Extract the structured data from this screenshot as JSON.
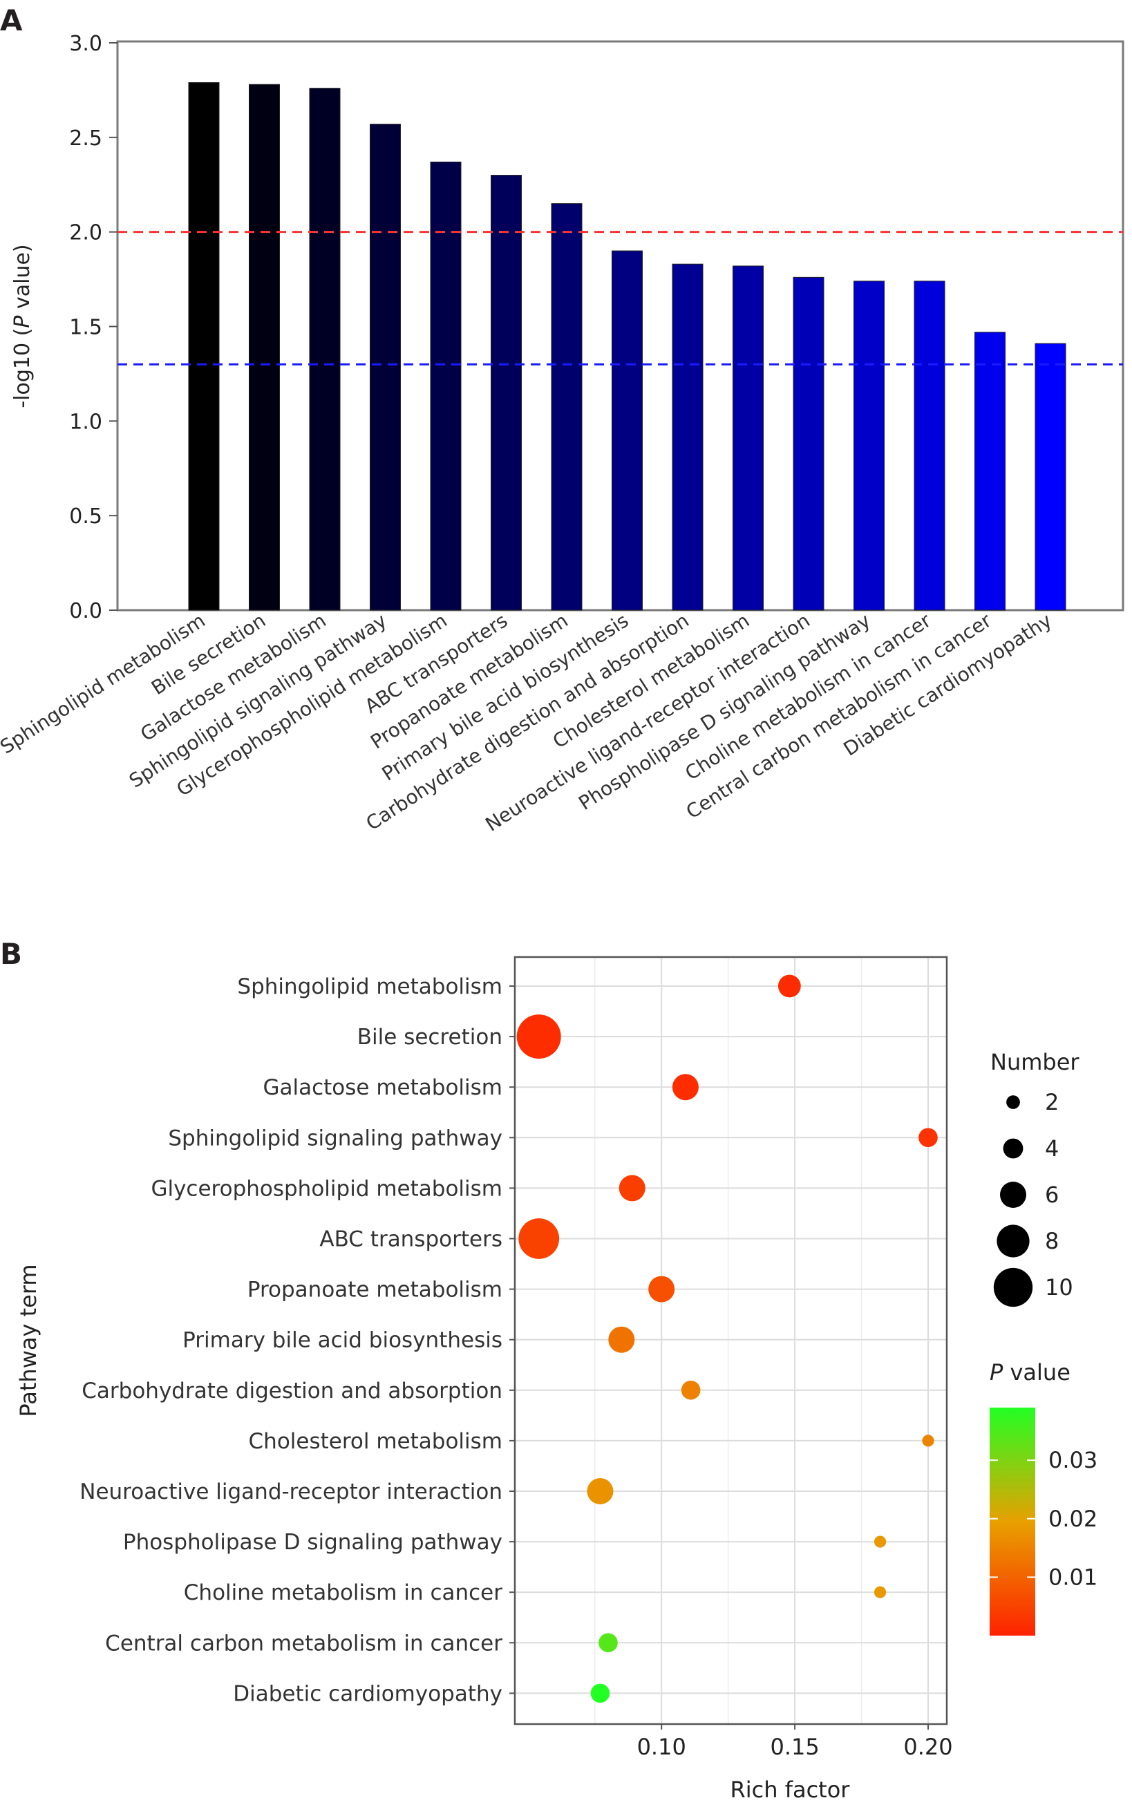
{
  "panels": {
    "a_letter": "A",
    "b_letter": "B"
  },
  "colors": {
    "bar_dark": "#000000",
    "bar_bright": "#0000ff",
    "ref_red": "#ff3333",
    "ref_blue": "#1a1aff",
    "pval_low": "#ff2200",
    "pval_mid": "#e8a000",
    "pval_high": "#22ff22"
  },
  "chart_data": [
    {
      "type": "bar",
      "ylabel_prefix": "-log10 (",
      "ylabel_italic": "P",
      "ylabel_suffix": " value)",
      "ylim": [
        0,
        3.0
      ],
      "yticks": [
        "0.0",
        "0.5",
        "1.0",
        "1.5",
        "2.0",
        "2.5",
        "3.0"
      ],
      "reference_lines": [
        {
          "value": 2.0,
          "color": "#ff3333",
          "style": "dashed"
        },
        {
          "value": 1.3,
          "color": "#1a1aff",
          "style": "dashed"
        }
      ],
      "categories": [
        "Sphingolipid metabolism",
        "Bile secretion",
        "Galactose metabolism",
        "Sphingolipid signaling pathway",
        "Glycerophospholipid metabolism",
        "ABC transporters",
        "Propanoate metabolism",
        "Primary bile acid biosynthesis",
        "Carbohydrate digestion and absorption",
        "Cholesterol metabolism",
        "Neuroactive ligand-receptor interaction",
        "Phospholipase D signaling pathway",
        "Choline metabolism in cancer",
        "Central carbon metabolism in cancer",
        "Diabetic cardiomyopathy"
      ],
      "values": [
        2.79,
        2.78,
        2.76,
        2.57,
        2.37,
        2.3,
        2.15,
        1.9,
        1.83,
        1.82,
        1.76,
        1.74,
        1.74,
        1.47,
        1.41
      ],
      "grid": false
    },
    {
      "type": "scatter",
      "xlabel": "Rich factor",
      "ylabel": "Pathway term",
      "xlim": [
        0.045,
        0.207
      ],
      "xticks": [
        "0.10",
        "0.15",
        "0.20"
      ],
      "xtick_values": [
        0.1,
        0.15,
        0.2
      ],
      "grid": true,
      "size_legend_title": "Number",
      "size_legend": [
        2,
        4,
        6,
        8,
        10
      ],
      "color_legend_title_italic": "P",
      "color_legend_title_suffix": " value",
      "color_legend_ticks": [
        "0.01",
        "0.02",
        "0.03"
      ],
      "color_legend_tick_values": [
        0.01,
        0.02,
        0.03
      ],
      "color_range": [
        0.0,
        0.039
      ],
      "points": [
        {
          "term": "Sphingolipid metabolism",
          "rich_factor": 0.148,
          "number": 4,
          "p_value": 0.0016
        },
        {
          "term": "Bile secretion",
          "rich_factor": 0.054,
          "number": 10,
          "p_value": 0.0017
        },
        {
          "term": "Galactose metabolism",
          "rich_factor": 0.109,
          "number": 5,
          "p_value": 0.0017
        },
        {
          "term": "Sphingolipid signaling pathway",
          "rich_factor": 0.2,
          "number": 3,
          "p_value": 0.0027
        },
        {
          "term": "Glycerophospholipid metabolism",
          "rich_factor": 0.089,
          "number": 5,
          "p_value": 0.0043
        },
        {
          "term": "ABC transporters",
          "rich_factor": 0.054,
          "number": 9,
          "p_value": 0.005
        },
        {
          "term": "Propanoate metabolism",
          "rich_factor": 0.1,
          "number": 5,
          "p_value": 0.0071
        },
        {
          "term": "Primary bile acid biosynthesis",
          "rich_factor": 0.085,
          "number": 5,
          "p_value": 0.0126
        },
        {
          "term": "Carbohydrate digestion and absorption",
          "rich_factor": 0.111,
          "number": 3,
          "p_value": 0.0148
        },
        {
          "term": "Cholesterol metabolism",
          "rich_factor": 0.2,
          "number": 1,
          "p_value": 0.0151
        },
        {
          "term": "Neuroactive ligand-receptor interaction",
          "rich_factor": 0.077,
          "number": 5,
          "p_value": 0.0174
        },
        {
          "term": "Phospholipase D signaling pathway",
          "rich_factor": 0.182,
          "number": 1,
          "p_value": 0.0182
        },
        {
          "term": "Choline metabolism in cancer",
          "rich_factor": 0.182,
          "number": 1,
          "p_value": 0.0182
        },
        {
          "term": "Central carbon metabolism in cancer",
          "rich_factor": 0.08,
          "number": 3,
          "p_value": 0.034
        },
        {
          "term": "Diabetic cardiomyopathy",
          "rich_factor": 0.077,
          "number": 3,
          "p_value": 0.039
        }
      ]
    }
  ]
}
